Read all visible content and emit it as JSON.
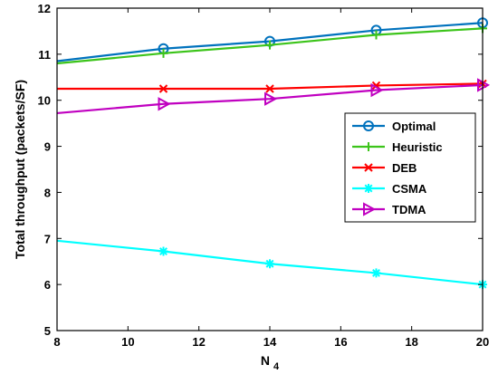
{
  "chart_data": {
    "type": "line",
    "xlabel_main": "N",
    "xlabel_sub": "4",
    "ylabel": "Total throughput (packets/SF)",
    "xlim": [
      8,
      20
    ],
    "ylim": [
      5,
      12
    ],
    "xticks": [
      8,
      10,
      12,
      14,
      16,
      18,
      20
    ],
    "yticks": [
      5,
      6,
      7,
      8,
      9,
      10,
      11,
      12
    ],
    "grid": false,
    "legend_position": "right-middle",
    "x": [
      8,
      11,
      14,
      17,
      20
    ],
    "series": [
      {
        "name": "Optimal",
        "color": "#0072BD",
        "marker": "circle",
        "values": [
          10.85,
          11.12,
          11.28,
          11.52,
          11.68
        ]
      },
      {
        "name": "Heuristic",
        "color": "#3CC41A",
        "marker": "plus",
        "values": [
          10.8,
          11.02,
          11.2,
          11.42,
          11.56
        ]
      },
      {
        "name": "DEB",
        "color": "#FF0000",
        "marker": "x",
        "values": [
          10.25,
          10.25,
          10.25,
          10.32,
          10.36
        ]
      },
      {
        "name": "CSMA",
        "color": "#00FFFF",
        "marker": "star",
        "values": [
          6.95,
          6.72,
          6.45,
          6.25,
          6.0
        ]
      },
      {
        "name": "TDMA",
        "color": "#C000C0",
        "marker": "triangle",
        "values": [
          9.72,
          9.92,
          10.03,
          10.22,
          10.33
        ]
      }
    ]
  }
}
